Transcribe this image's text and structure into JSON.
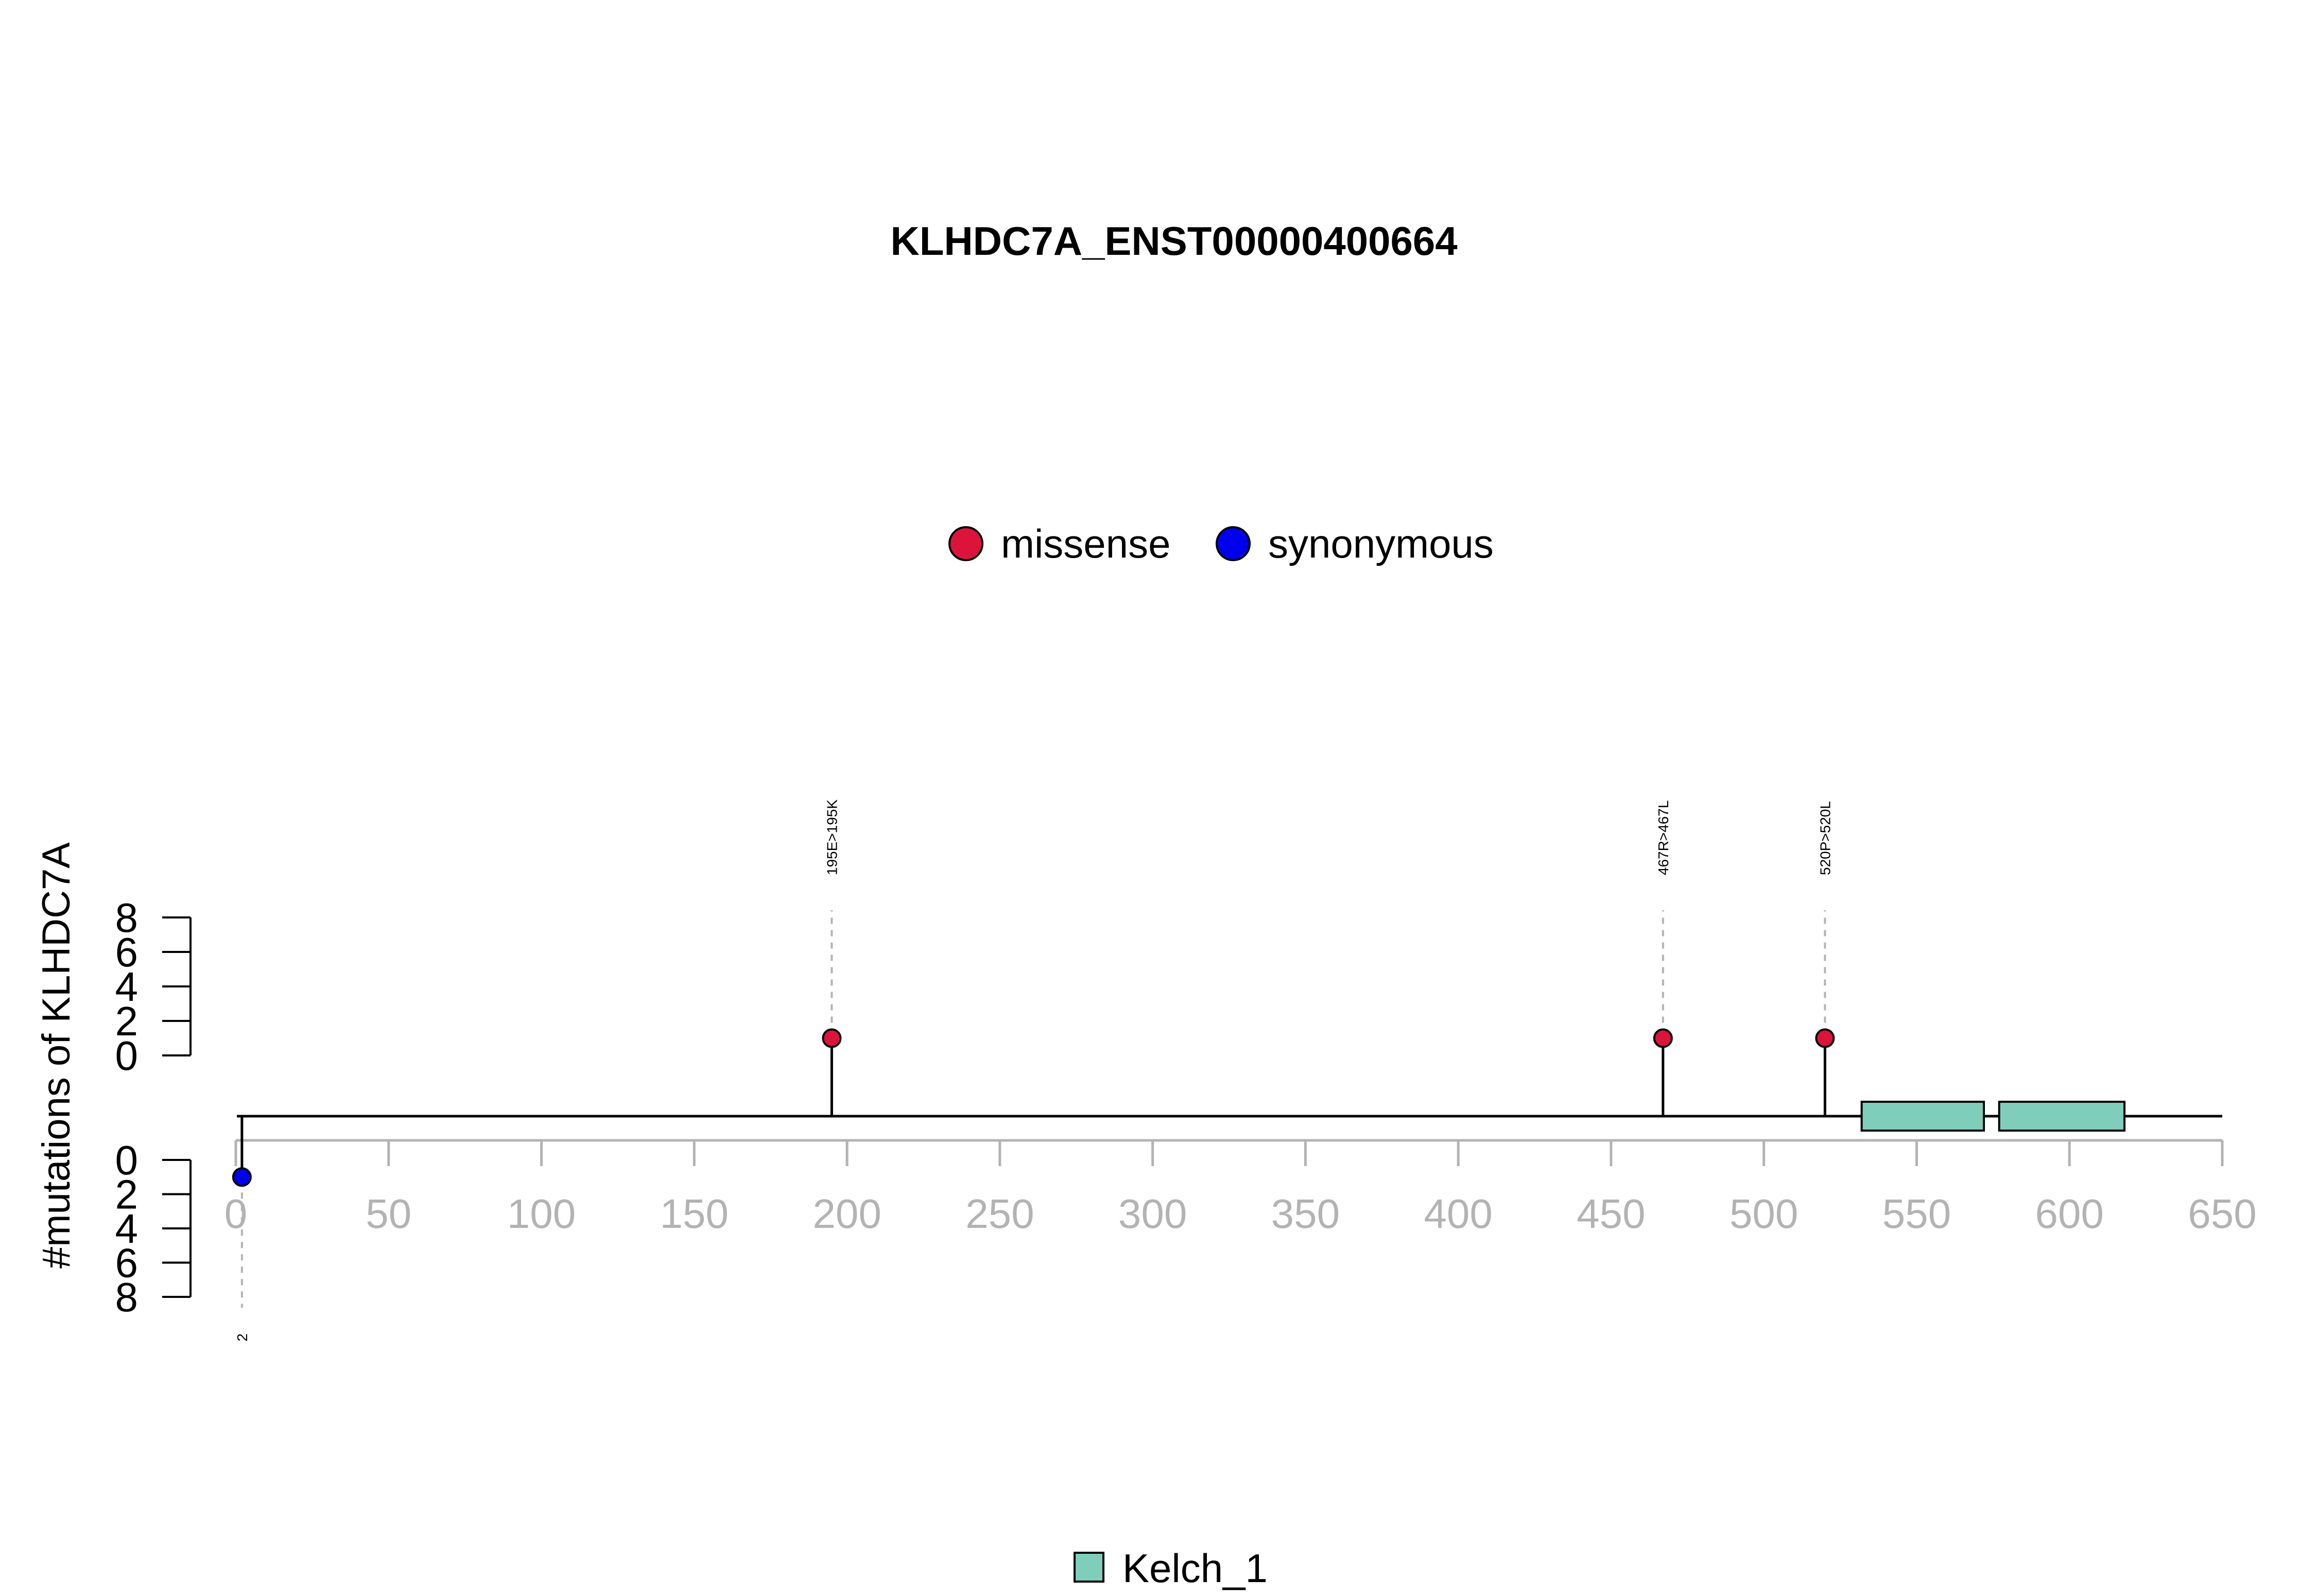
{
  "chart_data": {
    "type": "lollipop",
    "title": "KLHDC7A_ENST00000400664",
    "ylabel": "#mutations of KLHDC7A",
    "protein_length": 650,
    "xlim": [
      0,
      650
    ],
    "x_ticks": [
      0,
      50,
      100,
      150,
      200,
      250,
      300,
      350,
      400,
      450,
      500,
      550,
      600,
      650
    ],
    "y_ticks_upper": [
      0,
      2,
      4,
      6,
      8
    ],
    "y_ticks_lower": [
      0,
      2,
      4,
      6,
      8
    ],
    "mutation_legend": [
      {
        "name": "missense",
        "color": "#dc143c"
      },
      {
        "name": "synonymous",
        "color": "#0000ee"
      }
    ],
    "mutations": [
      {
        "position": 195,
        "count": 1,
        "type": "missense",
        "label": "195E>195K",
        "side": "top"
      },
      {
        "position": 467,
        "count": 1,
        "type": "missense",
        "label": "467R>467L",
        "side": "top"
      },
      {
        "position": 520,
        "count": 1,
        "type": "missense",
        "label": "520P>520L",
        "side": "top"
      },
      {
        "position": 2,
        "count": 1,
        "type": "synonymous",
        "label": "2",
        "side": "bottom"
      }
    ],
    "domains": [
      {
        "name": "Kelch_1",
        "start": 532,
        "end": 572,
        "color": "#7fcdbb"
      },
      {
        "name": "Kelch_1",
        "start": 577,
        "end": 618,
        "color": "#7fcdbb"
      }
    ],
    "domain_legend": [
      {
        "name": "Kelch_1",
        "color": "#7fcdbb"
      }
    ]
  }
}
